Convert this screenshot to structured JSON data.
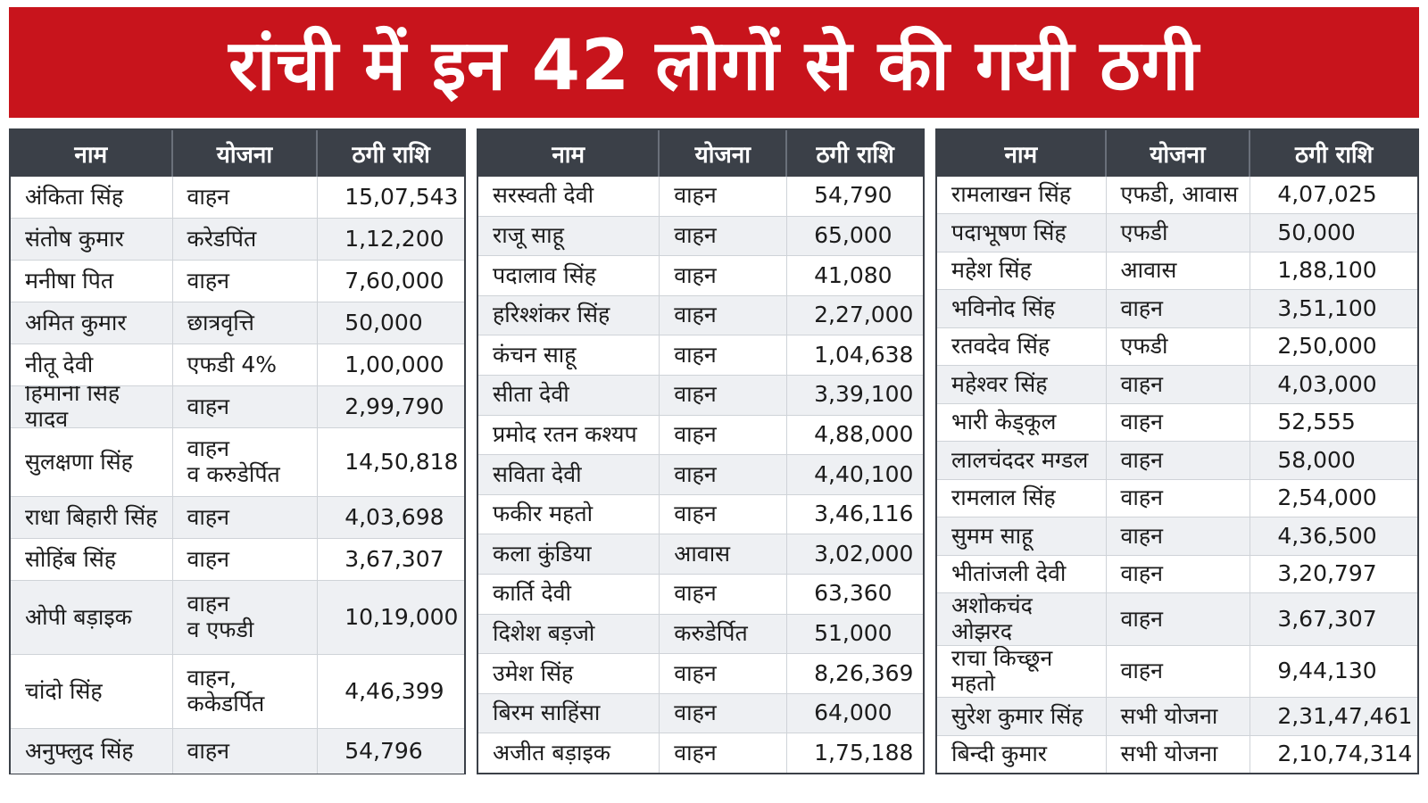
{
  "title": "रांची में इन 42 लोगों से की गयी ठगी",
  "colors": {
    "banner": "#c8141c",
    "header": "#3b4048",
    "alt_row": "#eef0f3"
  },
  "tables": [
    {
      "headers": [
        "नाम",
        "योजना",
        "ठगी राशि"
      ],
      "rows": [
        [
          "अंकिता सिंह",
          "वाहन",
          "15,07,543"
        ],
        [
          "संतोष कुमार",
          "करेडपिंत",
          "1,12,200"
        ],
        [
          "मनीषा पित",
          "वाहन",
          "7,60,000"
        ],
        [
          "अमित कुमार",
          "छात्रवृत्ति",
          "50,000"
        ],
        [
          "नीतू देवी",
          "एफडी 4%",
          "1,00,000"
        ],
        [
          "हिमानी सिंह यादव",
          "वाहन",
          "2,99,790"
        ],
        [
          "सुलक्षणा सिंह",
          "वाहन\nव करुडेर्पित",
          "14,50,818"
        ],
        [
          "राधा बिहारी सिंह",
          "वाहन",
          "4,03,698"
        ],
        [
          "सोहिंब सिंह",
          "वाहन",
          "3,67,307"
        ],
        [
          "ओपी बड़ाइक",
          "वाहन\nव एफडी",
          "10,19,000"
        ],
        [
          "चांदो सिंह",
          "वाहन,\nककेडर्पित",
          "4,46,399"
        ],
        [
          "अनुफ्लुद सिंह",
          "वाहन",
          "54,796"
        ]
      ]
    },
    {
      "headers": [
        "नाम",
        "योजना",
        "ठगी राशि"
      ],
      "rows": [
        [
          "सरस्वती देवी",
          "वाहन",
          "54,790"
        ],
        [
          "राजू साहू",
          "वाहन",
          "65,000"
        ],
        [
          "पदालाव सिंह",
          "वाहन",
          "41,080"
        ],
        [
          "हरिश्शंकर सिंह",
          "वाहन",
          "2,27,000"
        ],
        [
          "कंचन साहू",
          "वाहन",
          "1,04,638"
        ],
        [
          "सीता देवी",
          "वाहन",
          "3,39,100"
        ],
        [
          "प्रमोद रतन कश्यप",
          "वाहन",
          "4,88,000"
        ],
        [
          "सविता देवी",
          "वाहन",
          "4,40,100"
        ],
        [
          "फकीर महतो",
          "वाहन",
          "3,46,116"
        ],
        [
          "कला कुंडिया",
          "आवास",
          "3,02,000"
        ],
        [
          "कार्ति देवी",
          "वाहन",
          "63,360"
        ],
        [
          "दिशेश बड़जो",
          "करुडेर्पित",
          "51,000"
        ],
        [
          "उमेश सिंह",
          "वाहन",
          "8,26,369"
        ],
        [
          "बिरम साहिंसा",
          "वाहन",
          "64,000"
        ],
        [
          "अजीत बड़ाइक",
          "वाहन",
          "1,75,188"
        ]
      ]
    },
    {
      "headers": [
        "नाम",
        "योजना",
        "ठगी राशि"
      ],
      "rows": [
        [
          "रामलाखन सिंह",
          "एफडी, आवास",
          "4,07,025"
        ],
        [
          "पदाभूषण सिंह",
          "एफडी",
          "50,000"
        ],
        [
          "महेश सिंह",
          "आवास",
          "1,88,100"
        ],
        [
          "भविनोद सिंह",
          "वाहन",
          "3,51,100"
        ],
        [
          "रतवदेव सिंह",
          "एफडी",
          "2,50,000"
        ],
        [
          "महेश्वर सिंह",
          "वाहन",
          "4,03,000"
        ],
        [
          "भारी केड्कूल",
          "वाहन",
          "52,555"
        ],
        [
          "लालचंददर मग्डल",
          "वाहन",
          "58,000"
        ],
        [
          "रामलाल सिंह",
          "वाहन",
          "2,54,000"
        ],
        [
          "सुमम साहू",
          "वाहन",
          "4,36,500"
        ],
        [
          "भीतांजली देवी",
          "वाहन",
          "3,20,797"
        ],
        [
          "अशोकचंद ओझरद",
          "वाहन",
          "3,67,307"
        ],
        [
          "राचा किच्छून महतो",
          "वाहन",
          "9,44,130"
        ],
        [
          "सुरेश कुमार सिंह",
          "सभी योजना",
          "2,31,47,461"
        ],
        [
          "बिन्दी कुमार",
          "सभी योजना",
          "2,10,74,314"
        ]
      ]
    }
  ]
}
